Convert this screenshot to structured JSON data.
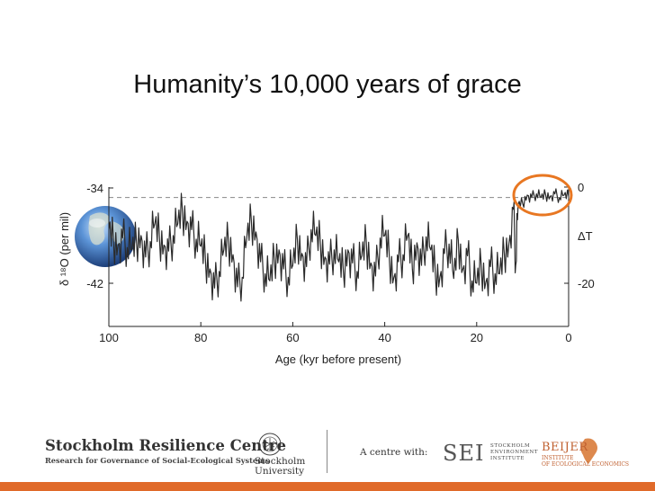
{
  "slide": {
    "title": "Humanity’s 10,000 years of grace"
  },
  "chart_data": {
    "type": "line",
    "x_axis": {
      "label": "Age (kyr before present)",
      "range": [
        100,
        0
      ],
      "ticks": [
        100,
        80,
        60,
        40,
        20,
        0
      ],
      "tick_labels": [
        "100",
        "80",
        "60",
        "40",
        "20",
        "0"
      ]
    },
    "y_axis_left": {
      "label": "δ ¹⁸O (per mil)",
      "range": [
        -34,
        -42
      ],
      "ticks": [
        -34,
        -42
      ],
      "tick_labels": [
        "-34",
        "-42"
      ]
    },
    "y_axis_right": {
      "label": "ΔT",
      "ticks": [
        0,
        -20
      ],
      "tick_labels": [
        "0",
        "-20"
      ]
    },
    "reference_line": {
      "value": -34.8,
      "style": "dashed"
    },
    "highlight": {
      "x_range": [
        0,
        11
      ],
      "color": "#e87722"
    },
    "series": [
      {
        "x": [
          100,
          99,
          98,
          97,
          96,
          95,
          94,
          93,
          92,
          91,
          90,
          89,
          88,
          87,
          86,
          85,
          84,
          83,
          82,
          81,
          80,
          79,
          78,
          77,
          76,
          75,
          74,
          73,
          72,
          71,
          70,
          69,
          68,
          67,
          66,
          65,
          64,
          63,
          62,
          61,
          60,
          59,
          58,
          57,
          56,
          55,
          54,
          53,
          52,
          51,
          50,
          49,
          48,
          47,
          46,
          45,
          44,
          43,
          42,
          41,
          40,
          39,
          38,
          37,
          36,
          35,
          34,
          33,
          32,
          31,
          30,
          29,
          28,
          27,
          26,
          25,
          24,
          23,
          22,
          21,
          20,
          19,
          18,
          17,
          16,
          15,
          14,
          13,
          12,
          11.5,
          11,
          10,
          9,
          8,
          7,
          6,
          5,
          4,
          3,
          2,
          1,
          0
        ],
        "y": [
          -37.5,
          -38.5,
          -38.8,
          -38.2,
          -39.0,
          -39.2,
          -38.5,
          -38.0,
          -39.8,
          -38.5,
          -37.0,
          -38.2,
          -38.8,
          -39.3,
          -38.0,
          -37.0,
          -36.0,
          -36.8,
          -37.5,
          -38.3,
          -38.9,
          -40.0,
          -40.8,
          -42.4,
          -41.0,
          -39.2,
          -38.5,
          -39.6,
          -42.3,
          -41.5,
          -38.2,
          -36.8,
          -37.7,
          -40.2,
          -41.2,
          -41.8,
          -40.0,
          -39.2,
          -40.8,
          -41.5,
          -40.5,
          -38.3,
          -39.5,
          -40.6,
          -37.5,
          -38.0,
          -38.7,
          -39.8,
          -40.4,
          -39.2,
          -40.2,
          -41.0,
          -39.2,
          -40.3,
          -41.0,
          -39.7,
          -38.6,
          -40.3,
          -41.4,
          -38.2,
          -38.0,
          -39.8,
          -41.5,
          -40.2,
          -39.6,
          -38.0,
          -40.8,
          -38.6,
          -40.5,
          -38.1,
          -39.2,
          -41.1,
          -41.5,
          -39.5,
          -38.7,
          -41.6,
          -38.4,
          -40.8,
          -39.7,
          -41.8,
          -42.0,
          -40.5,
          -41.9,
          -40.6,
          -41.2,
          -41.2,
          -39.5,
          -38.7,
          -35.8,
          -40.5,
          -35.4,
          -35.3,
          -34.6,
          -34.8,
          -34.5,
          -34.8,
          -34.6,
          -34.7,
          -34.5,
          -34.8,
          -34.6,
          -34.7
        ]
      }
    ]
  },
  "footer": {
    "src_name": "Stockholm Resilience Centre",
    "src_sub": "Research for Governance of Social-Ecological Systems",
    "su_line1": "Stockholm",
    "su_line2": "University",
    "centre_with": "A centre with:",
    "sei_mark": "SEI",
    "sei_line1": "STOCKHOLM",
    "sei_line2": "ENVIRONMENT",
    "sei_line3": "INSTITUTE",
    "beijer_name": "BEIJER",
    "beijer_sub1": "INSTITUTE",
    "beijer_sub2": "OF ECOLOGICAL ECONOMICS"
  },
  "colors": {
    "accent_bar": "#e06a2a",
    "highlight_circle": "#e87722",
    "trace": "#2a2a2a"
  }
}
